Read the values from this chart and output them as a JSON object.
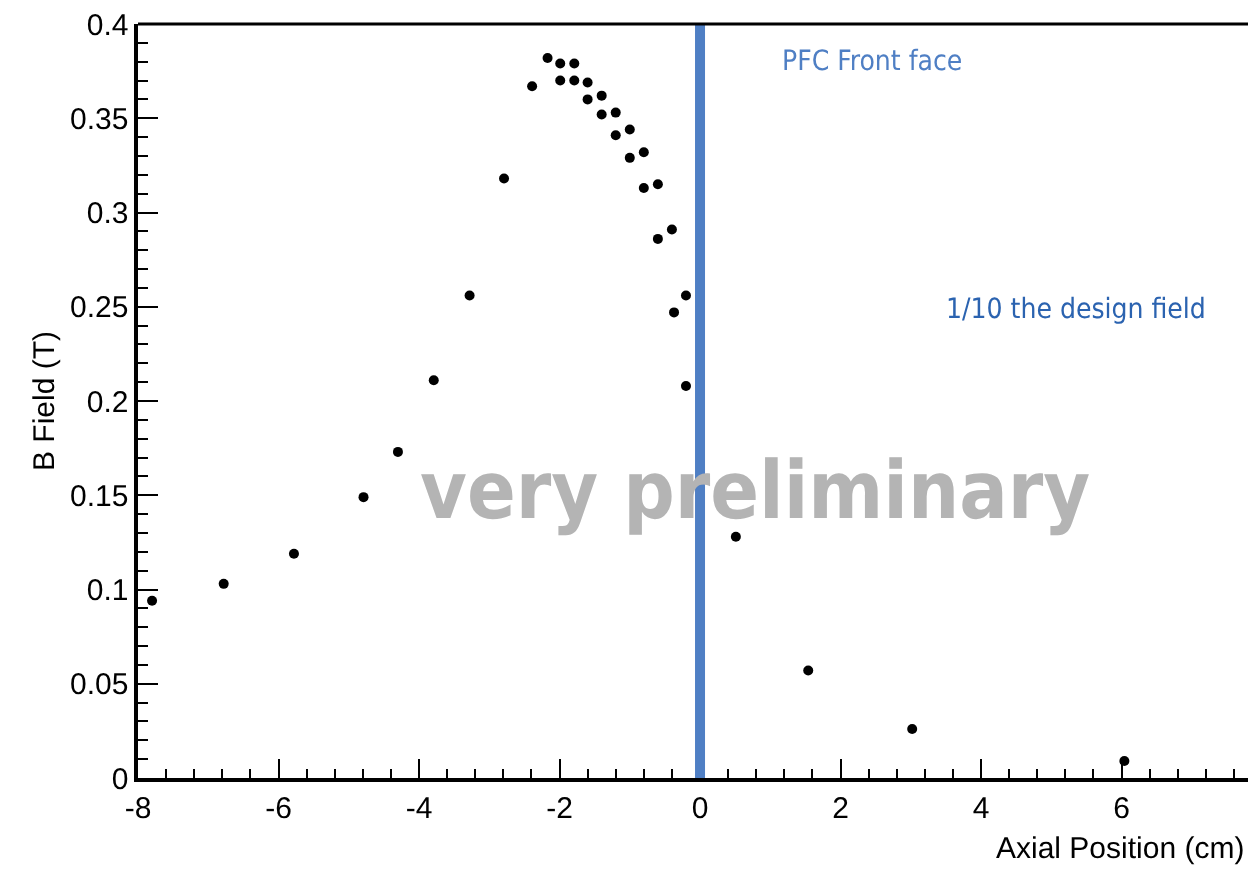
{
  "chart_data": {
    "type": "scatter",
    "xlabel": "Axial Position (cm)",
    "ylabel": "B Field (T)",
    "xlim": [
      -8,
      7.8
    ],
    "xticks": [
      -8,
      -6,
      -4,
      -2,
      0,
      2,
      4,
      6
    ],
    "ylim": [
      0,
      0.4
    ],
    "yticks": [
      0,
      0.05,
      0.1,
      0.15,
      0.2,
      0.25,
      0.3,
      0.35,
      0.4
    ],
    "grid": false,
    "marker": "circle",
    "series": [
      {
        "color": "#000000",
        "x": [
          -7.8,
          -6.78,
          -5.78,
          -4.79,
          -4.3,
          -3.79,
          -3.28,
          -2.79,
          -2.39,
          -2.17,
          -1.99,
          -1.79,
          -1.99,
          -1.79,
          -1.6,
          -1.6,
          -1.4,
          -1.4,
          -1.2,
          -1.2,
          -1.0,
          -1.0,
          -0.8,
          -0.8,
          -0.6,
          -0.6,
          -0.4,
          -0.37,
          -0.2,
          -0.2,
          0.51,
          1.54,
          3.02,
          6.04
        ],
        "values": [
          0.094,
          0.103,
          0.119,
          0.149,
          0.173,
          0.211,
          0.256,
          0.318,
          0.367,
          0.382,
          0.379,
          0.379,
          0.37,
          0.37,
          0.369,
          0.36,
          0.362,
          0.352,
          0.353,
          0.341,
          0.344,
          0.329,
          0.332,
          0.313,
          0.315,
          0.286,
          0.291,
          0.247,
          0.256,
          0.208,
          0.128,
          0.057,
          0.026,
          0.009
        ]
      }
    ],
    "ref_lines": [
      {
        "axis": "x",
        "value": 0,
        "label": "PFC Front face",
        "color": "#4f7fc4"
      }
    ],
    "annotations": [
      "1/10 the design field",
      "very preliminary"
    ]
  }
}
